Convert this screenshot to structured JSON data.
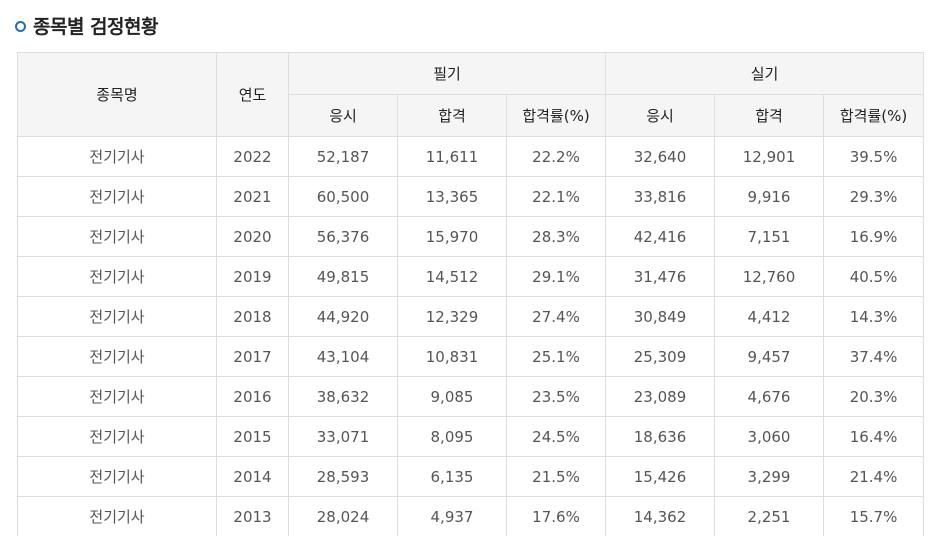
{
  "heading": {
    "title": "종목별 검정현황"
  },
  "table": {
    "headers": {
      "name": "종목명",
      "year": "연도",
      "written": "필기",
      "practical": "실기",
      "applicants": "응시",
      "passed": "합격",
      "pass_rate": "합격률(%)"
    },
    "rows": [
      {
        "name": "전기기사",
        "year": "2022",
        "w_app": "52,187",
        "w_pass": "11,611",
        "w_rate": "22.2%",
        "p_app": "32,640",
        "p_pass": "12,901",
        "p_rate": "39.5%"
      },
      {
        "name": "전기기사",
        "year": "2021",
        "w_app": "60,500",
        "w_pass": "13,365",
        "w_rate": "22.1%",
        "p_app": "33,816",
        "p_pass": "9,916",
        "p_rate": "29.3%"
      },
      {
        "name": "전기기사",
        "year": "2020",
        "w_app": "56,376",
        "w_pass": "15,970",
        "w_rate": "28.3%",
        "p_app": "42,416",
        "p_pass": "7,151",
        "p_rate": "16.9%"
      },
      {
        "name": "전기기사",
        "year": "2019",
        "w_app": "49,815",
        "w_pass": "14,512",
        "w_rate": "29.1%",
        "p_app": "31,476",
        "p_pass": "12,760",
        "p_rate": "40.5%"
      },
      {
        "name": "전기기사",
        "year": "2018",
        "w_app": "44,920",
        "w_pass": "12,329",
        "w_rate": "27.4%",
        "p_app": "30,849",
        "p_pass": "4,412",
        "p_rate": "14.3%"
      },
      {
        "name": "전기기사",
        "year": "2017",
        "w_app": "43,104",
        "w_pass": "10,831",
        "w_rate": "25.1%",
        "p_app": "25,309",
        "p_pass": "9,457",
        "p_rate": "37.4%"
      },
      {
        "name": "전기기사",
        "year": "2016",
        "w_app": "38,632",
        "w_pass": "9,085",
        "w_rate": "23.5%",
        "p_app": "23,089",
        "p_pass": "4,676",
        "p_rate": "20.3%"
      },
      {
        "name": "전기기사",
        "year": "2015",
        "w_app": "33,071",
        "w_pass": "8,095",
        "w_rate": "24.5%",
        "p_app": "18,636",
        "p_pass": "3,060",
        "p_rate": "16.4%"
      },
      {
        "name": "전기기사",
        "year": "2014",
        "w_app": "28,593",
        "w_pass": "6,135",
        "w_rate": "21.5%",
        "p_app": "15,426",
        "p_pass": "3,299",
        "p_rate": "21.4%"
      },
      {
        "name": "전기기사",
        "year": "2013",
        "w_app": "28,024",
        "w_pass": "4,937",
        "w_rate": "17.6%",
        "p_app": "14,362",
        "p_pass": "2,251",
        "p_rate": "15.7%"
      }
    ]
  }
}
